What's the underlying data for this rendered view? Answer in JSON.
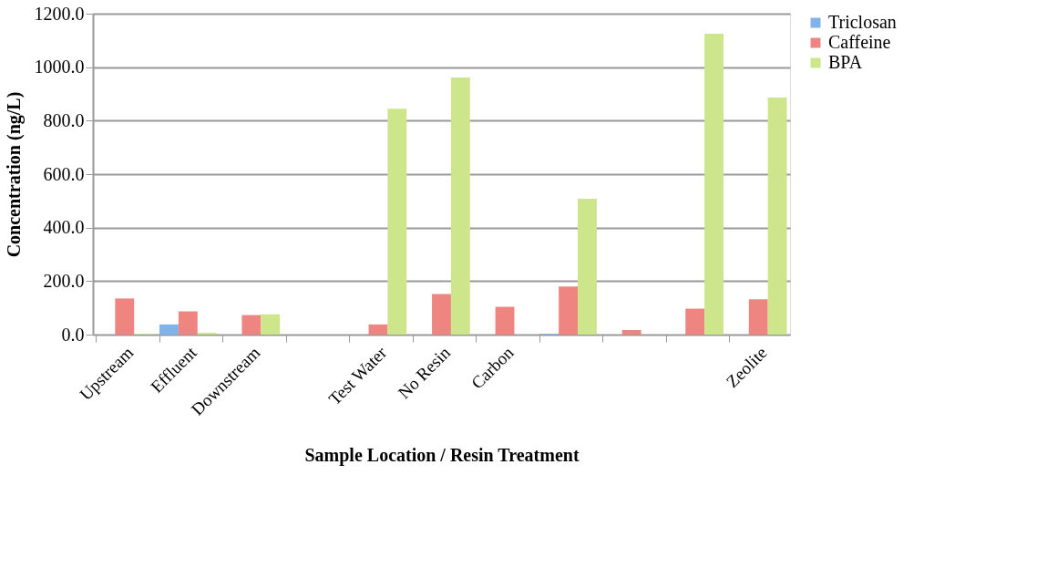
{
  "chart_data": {
    "type": "bar",
    "xlabel": "Sample Location / Resin Treatment",
    "ylabel": "Concentration (ng/L)",
    "categories": [
      "Upstream",
      "Effluent",
      "Downstream",
      null,
      "Test Water",
      "No Resin",
      "Carbon",
      null,
      null,
      null,
      "Zeolite"
    ],
    "series": [
      {
        "name": "Triclosan",
        "color": "#7fb3ea",
        "values": [
          null,
          38,
          null,
          null,
          null,
          null,
          null,
          3,
          null,
          null,
          null
        ]
      },
      {
        "name": "Caffeine",
        "color": "#ee8580",
        "values": [
          135,
          87,
          73,
          null,
          38,
          152,
          104,
          180,
          17,
          97,
          132
        ]
      },
      {
        "name": "BPA",
        "color": "#cde68c",
        "values": [
          3,
          7,
          76,
          null,
          845,
          961,
          null,
          508,
          null,
          1125,
          886
        ]
      }
    ],
    "ylim": [
      0,
      1200
    ],
    "yticks": [
      {
        "value": 0,
        "label": "0.0"
      },
      {
        "value": 200,
        "label": "200.0"
      },
      {
        "value": 400,
        "label": "400.0"
      },
      {
        "value": 600,
        "label": "600.0"
      },
      {
        "value": 800,
        "label": "800.0"
      },
      {
        "value": 1000,
        "label": "1000.0"
      },
      {
        "value": 1200,
        "label": "1200.0"
      }
    ],
    "grid": "y",
    "legend": "right"
  }
}
